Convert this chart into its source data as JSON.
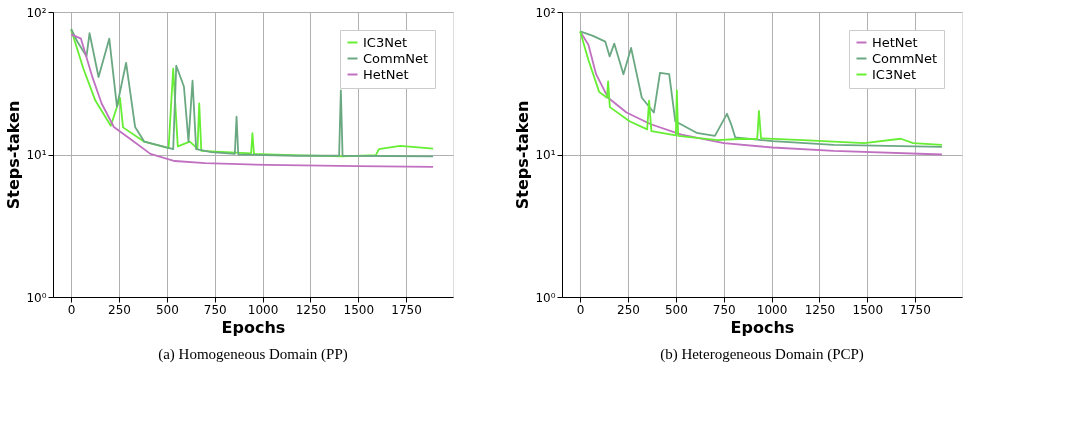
{
  "chart_data": [
    {
      "type": "line",
      "title": "(a) Homogeneous Domain (PP)",
      "xlabel": "Epochs",
      "ylabel": "Steps-taken",
      "log": "y",
      "grid": true,
      "legend": "top right",
      "xlim": [
        -95,
        1995
      ],
      "xticks": [
        0,
        250,
        500,
        750,
        1000,
        1250,
        1500,
        1750
      ],
      "ylim": [
        1,
        100
      ],
      "yticks": [
        {
          "value": 1,
          "label": "10⁰"
        },
        {
          "value": 10,
          "label": "10¹"
        },
        {
          "value": 100,
          "label": "10²"
        }
      ],
      "series": [
        {
          "name": "IC3Net",
          "color": "#66ee33",
          "x": [
            0,
            64,
            127,
            207,
            255,
            271,
            382,
            509,
            533,
            557,
            620,
            660,
            669,
            680,
            940,
            947,
            955,
            1150,
            1417,
            1592,
            1608,
            1719,
            1891
          ],
          "values": [
            75,
            40,
            23.8,
            15.9,
            25,
            15.5,
            12.3,
            11.1,
            40,
            11.4,
            12.3,
            11,
            22.8,
            10.6,
            10.2,
            14.1,
            10.1,
            9.9,
            9.7,
            9.9,
            10.9,
            11.5,
            11.0
          ]
        },
        {
          "name": "CommNet",
          "color": "#6aa882",
          "x": [
            0,
            32,
            80,
            96,
            143,
            199,
            239,
            287,
            334,
            382,
            533,
            549,
            589,
            613,
            634,
            653,
            732,
            855,
            864,
            873,
            1178,
            1400,
            1409,
            1418,
            1891
          ],
          "values": [
            76,
            62,
            48.8,
            71,
            35,
            65,
            21.7,
            44,
            15.6,
            12.3,
            10.9,
            42,
            30,
            12.3,
            33,
            10.9,
            10.4,
            10.1,
            18.4,
            10.0,
            9.8,
            9.8,
            28.2,
            9.8,
            9.7
          ]
        },
        {
          "name": "HetNet",
          "color": "#c070c0",
          "x": [
            0,
            51,
            111,
            159,
            223,
            318,
            414,
            541,
            700,
            1019,
            1496,
            1891
          ],
          "values": [
            69.7,
            65,
            34.9,
            22.8,
            15.6,
            12.6,
            10.1,
            9.0,
            8.7,
            8.45,
            8.3,
            8.2
          ]
        }
      ]
    },
    {
      "type": "line",
      "title": "(b) Heterogeneous Domain (PCP)",
      "xlabel": "Epochs",
      "ylabel": "Steps-taken",
      "log": "y",
      "grid": true,
      "legend": "top right",
      "xlim": [
        -95,
        1995
      ],
      "xticks": [
        0,
        250,
        500,
        750,
        1000,
        1250,
        1500,
        1750
      ],
      "ylim": [
        1,
        100
      ],
      "yticks": [
        {
          "value": 1,
          "label": "10⁰"
        },
        {
          "value": 10,
          "label": "10¹"
        },
        {
          "value": 100,
          "label": "10²"
        }
      ],
      "series": [
        {
          "name": "HetNet",
          "color": "#c070c0",
          "x": [
            0,
            43,
            83,
            146,
            242,
            369,
            529,
            751,
            1006,
            1325,
            1890
          ],
          "values": [
            73,
            59,
            36.6,
            25,
            19.7,
            16.3,
            13.8,
            12.0,
            11.2,
            10.6,
            10.0
          ]
        },
        {
          "name": "CommNet",
          "color": "#6aa882",
          "x": [
            0,
            67,
            131,
            154,
            178,
            226,
            266,
            322,
            385,
            417,
            465,
            497,
            608,
            704,
            767,
            791,
            810,
            1006,
            1325,
            1890
          ],
          "values": [
            73,
            68,
            62,
            48.8,
            60,
            36.6,
            56,
            25,
            19.7,
            37.4,
            36.6,
            17.1,
            14.2,
            13.5,
            19.3,
            16,
            13.2,
            12.4,
            11.7,
            11.3
          ]
        },
        {
          "name": "IC3Net",
          "color": "#66ee33",
          "x": [
            0,
            43,
            99,
            140,
            146,
            155,
            258,
            350,
            360,
            372,
            500,
            505,
            512,
            720,
            847,
            925,
            934,
            945,
            1165,
            1484,
            1675,
            1740,
            1890
          ],
          "values": [
            73,
            46,
            27.5,
            25,
            32.6,
            21.5,
            17.1,
            15.0,
            23.9,
            14.6,
            13.6,
            28.3,
            13.5,
            12.6,
            12.9,
            12.8,
            20.2,
            13.0,
            12.6,
            12.0,
            12.9,
            12.0,
            11.7
          ]
        }
      ]
    }
  ]
}
